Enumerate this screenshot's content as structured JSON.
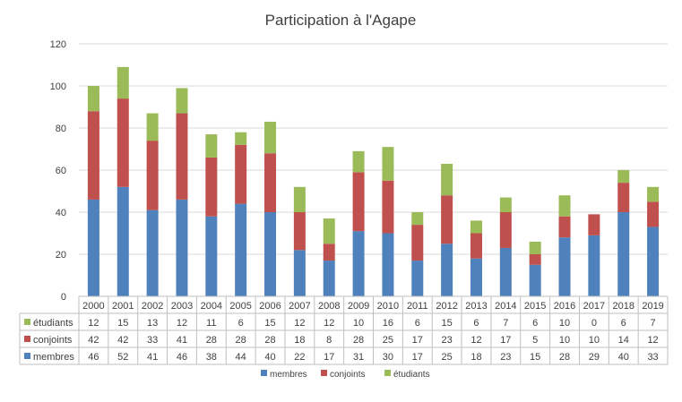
{
  "chart_data": {
    "type": "bar",
    "stacked": true,
    "title": "Participation à l'Agape",
    "xlabel": "",
    "ylabel": "",
    "ylim": [
      0,
      120
    ],
    "ytick_step": 20,
    "grid": true,
    "legend_position": "bottom",
    "data_table": true,
    "categories": [
      "2000",
      "2001",
      "2002",
      "2003",
      "2004",
      "2005",
      "2006",
      "2007",
      "2008",
      "2009",
      "2010",
      "2011",
      "2012",
      "2013",
      "2014",
      "2015",
      "2016",
      "2017",
      "2018",
      "2019"
    ],
    "series": [
      {
        "name": "membres",
        "color": "#4f81bd",
        "values": [
          46,
          52,
          41,
          46,
          38,
          44,
          40,
          22,
          17,
          31,
          30,
          17,
          25,
          18,
          23,
          15,
          28,
          29,
          40,
          33
        ]
      },
      {
        "name": "conjoints",
        "color": "#c0504d",
        "values": [
          42,
          42,
          33,
          41,
          28,
          28,
          28,
          18,
          8,
          28,
          25,
          17,
          23,
          12,
          17,
          5,
          10,
          10,
          14,
          12
        ]
      },
      {
        "name": "étudiants",
        "color": "#9bbb59",
        "values": [
          12,
          15,
          13,
          12,
          11,
          6,
          15,
          12,
          12,
          10,
          16,
          6,
          15,
          6,
          7,
          6,
          10,
          0,
          6,
          7
        ]
      }
    ]
  }
}
